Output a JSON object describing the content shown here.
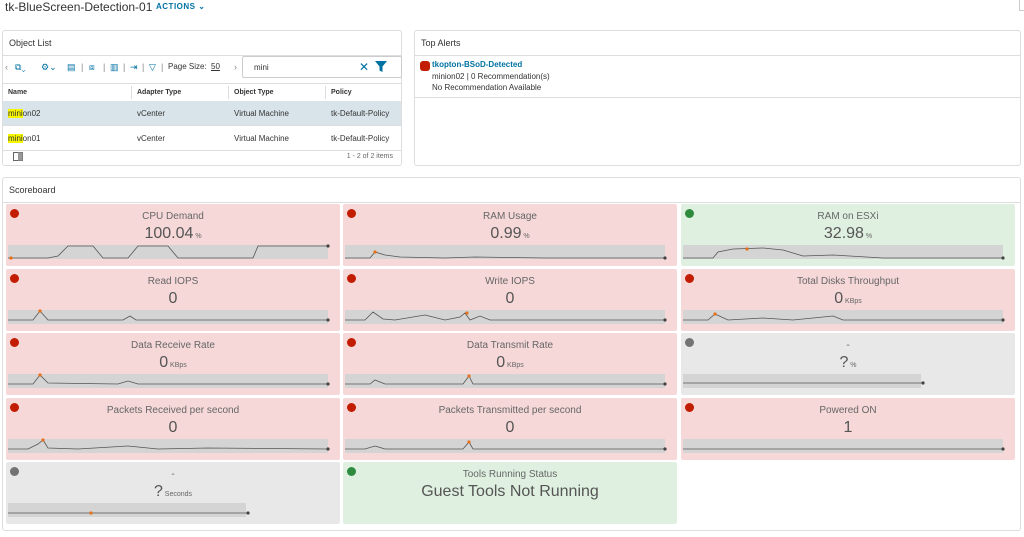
{
  "header": {
    "title": "tk-BlueScreen-Detection-01",
    "actions_label": "ACTIONS"
  },
  "object_list": {
    "title": "Object List",
    "page_size_label": "Page Size:",
    "page_size_value": "50",
    "search_value": "mini",
    "columns": [
      "Name",
      "Adapter Type",
      "Object Type",
      "Policy"
    ],
    "rows": [
      {
        "name_hl": "mini",
        "name_rest": "on02",
        "adapter": "vCenter",
        "type": "Virtual Machine",
        "policy": "tk-Default-Policy",
        "selected": true
      },
      {
        "name_hl": "mini",
        "name_rest": "on01",
        "adapter": "vCenter",
        "type": "Virtual Machine",
        "policy": "tk-Default-Policy",
        "selected": false
      }
    ],
    "footer": "1 - 2 of 2 items"
  },
  "top_alerts": {
    "title": "Top Alerts",
    "alert_name": "tkopton-BSoD-Detected",
    "line1": "minion02 | 0 Recommendation(s)",
    "line2": "No Recommendation Available"
  },
  "scoreboard": {
    "title": "Scoreboard",
    "tiles": [
      {
        "title": "CPU Demand",
        "value": "100.04",
        "unit": "%",
        "status": "red"
      },
      {
        "title": "RAM Usage",
        "value": "0.99",
        "unit": "%",
        "status": "red"
      },
      {
        "title": "RAM on ESXi",
        "value": "32.98",
        "unit": "%",
        "status": "green"
      },
      {
        "title": "Read IOPS",
        "value": "0",
        "unit": "",
        "status": "red"
      },
      {
        "title": "Write IOPS",
        "value": "0",
        "unit": "",
        "status": "red"
      },
      {
        "title": "Total Disks Throughput",
        "value": "0",
        "unit": "KBps",
        "status": "red"
      },
      {
        "title": "Data Receive Rate",
        "value": "0",
        "unit": "KBps",
        "status": "red"
      },
      {
        "title": "Data Transmit Rate",
        "value": "0",
        "unit": "KBps",
        "status": "red"
      },
      {
        "title": "-",
        "value": "?",
        "unit": "%",
        "status": "gray"
      },
      {
        "title": "Packets Received per second",
        "value": "0",
        "unit": "",
        "status": "red"
      },
      {
        "title": "Packets Transmitted per second",
        "value": "0",
        "unit": "",
        "status": "red"
      },
      {
        "title": "Powered ON",
        "value": "1",
        "unit": "",
        "status": "red"
      },
      {
        "title": "-",
        "value": "?",
        "unit": "Seconds",
        "status": "gray"
      },
      {
        "title": "Tools Running Status",
        "value": "Guest Tools Not Running",
        "unit": "",
        "status": "green"
      }
    ]
  },
  "colors": {
    "accent": "#0072a3",
    "critical": "#c21d00",
    "ok": "#2e8b3e",
    "unknown": "#737373",
    "highlight": "#f5f500"
  },
  "icons": [
    "filter-icon",
    "close-icon",
    "chevron-down-icon",
    "column-toggle-icon"
  ]
}
